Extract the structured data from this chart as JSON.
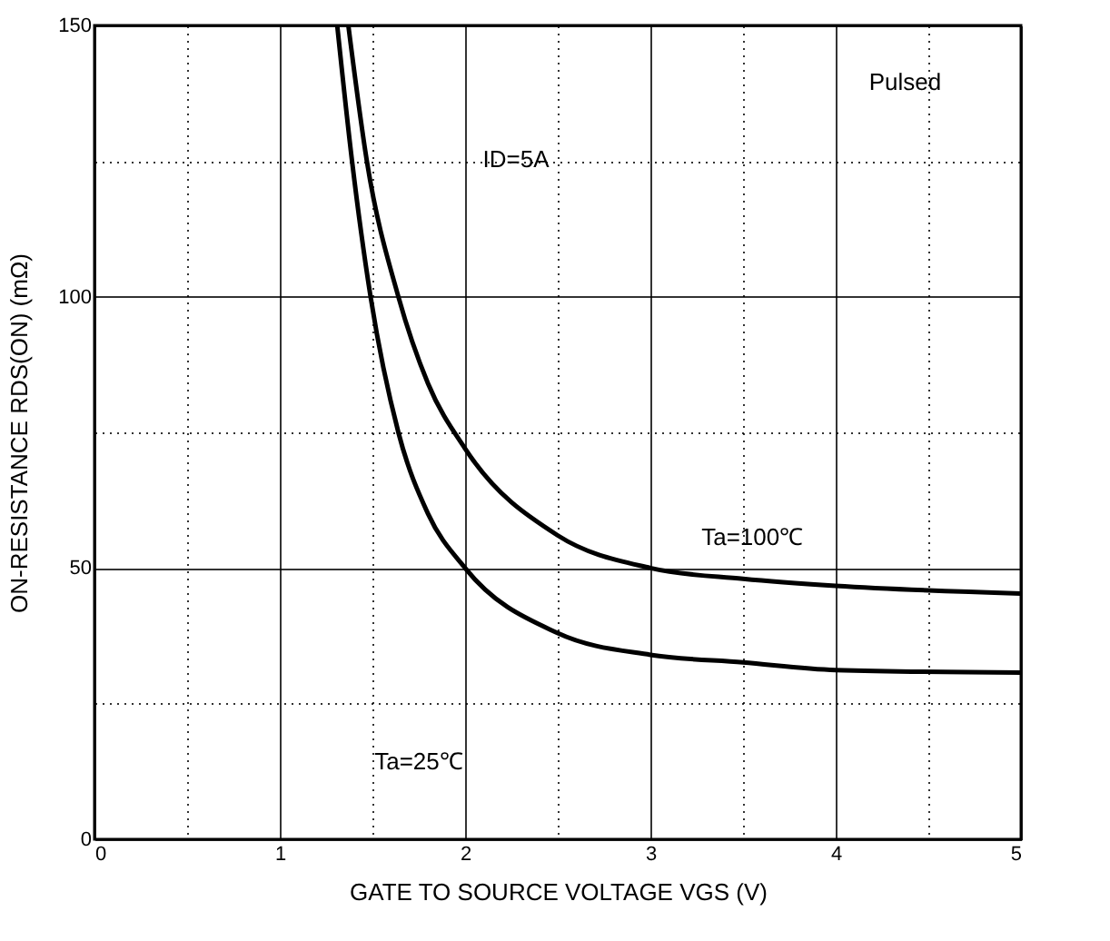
{
  "chart_data": {
    "type": "line",
    "xlabel": "GATE TO SOURCE VOLTAGE   VGS   (V)",
    "ylabel": "ON-RESISTANCE   RDS(ON)   (mΩ)",
    "series": [
      {
        "color": "#000000",
        "x": [
          1.31,
          1.39,
          1.49,
          1.64,
          1.8,
          2.0,
          2.5,
          3.0,
          3.5,
          4.0,
          5.0
        ],
        "values": [
          150,
          125,
          100,
          75,
          60,
          50,
          38,
          34,
          32.6,
          31.2,
          30.7
        ]
      },
      {
        "color": "#000000",
        "x": [
          1.37,
          1.47,
          1.64,
          1.8,
          2.0,
          2.5,
          3.0,
          3.5,
          4.0,
          5.0
        ],
        "values": [
          150,
          125,
          100,
          84,
          72,
          56,
          50,
          48,
          46.7,
          45.3
        ]
      }
    ],
    "xlim": [
      0,
      5
    ],
    "ylim": [
      0,
      150
    ],
    "xticks": [
      0,
      {
        "value": 0.5,
        "label": null
      },
      1,
      {
        "value": 1.5,
        "label": null
      },
      2,
      {
        "value": 2.5,
        "label": null
      },
      3,
      {
        "value": 3.5,
        "label": null
      },
      4,
      {
        "value": 4.5,
        "label": null
      },
      5
    ],
    "yticks": [
      0,
      {
        "value": 25,
        "label": null
      },
      50,
      {
        "value": 75,
        "label": null
      },
      100,
      {
        "value": 125,
        "label": null
      },
      150
    ],
    "grid": true,
    "marker": "none",
    "line_style": "solid",
    "annotations": [
      "Pulsed",
      "ID=5A",
      "Ta=100℃",
      "Ta=25℃"
    ]
  }
}
